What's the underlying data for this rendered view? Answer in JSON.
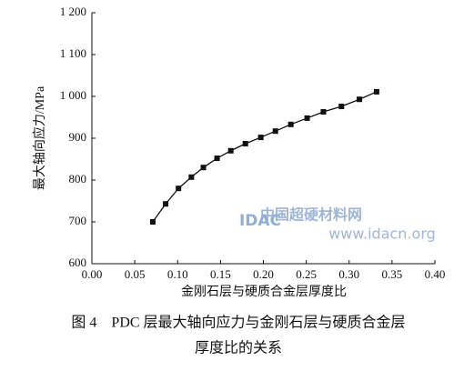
{
  "chart_data": {
    "type": "line",
    "x_label": "金刚石层与硬质合金层厚度比",
    "y_label": "最大轴向应力/MPa",
    "x": [
      0.071,
      0.086,
      0.101,
      0.116,
      0.13,
      0.146,
      0.162,
      0.179,
      0.197,
      0.214,
      0.232,
      0.251,
      0.27,
      0.291,
      0.312,
      0.332
    ],
    "series": [
      {
        "color": "#111111",
        "values": [
          700,
          743,
          780,
          807,
          830,
          852,
          870,
          887,
          902,
          917,
          933,
          948,
          963,
          976,
          993,
          1011
        ]
      }
    ],
    "xlim": [
      0,
      0.4
    ],
    "xticks": [
      {
        "value": 0,
        "label": "0.00"
      },
      0.05,
      {
        "value": 0.1,
        "label": "0.10"
      },
      0.15,
      {
        "value": 0.2,
        "label": "0.20"
      },
      0.25,
      {
        "value": 0.3,
        "label": "0.30"
      },
      0.35,
      {
        "value": 0.4,
        "label": "0.40"
      }
    ],
    "ylim": [
      600,
      1200
    ],
    "yticks": [
      600,
      700,
      800,
      900,
      {
        "value": 1000,
        "label": "1 000"
      },
      {
        "value": 1100,
        "label": "1 100"
      },
      {
        "value": 1200,
        "label": "1 200"
      }
    ],
    "grid": false,
    "marker": "square"
  },
  "caption": [
    "图 4　PDC 层最大轴向应力与金刚石层与硬质合金层",
    "厚度比的关系"
  ],
  "watermark": {
    "logo": "IDAC",
    "site_name": "中国超硬材料网",
    "url": "www.idacn.org"
  }
}
